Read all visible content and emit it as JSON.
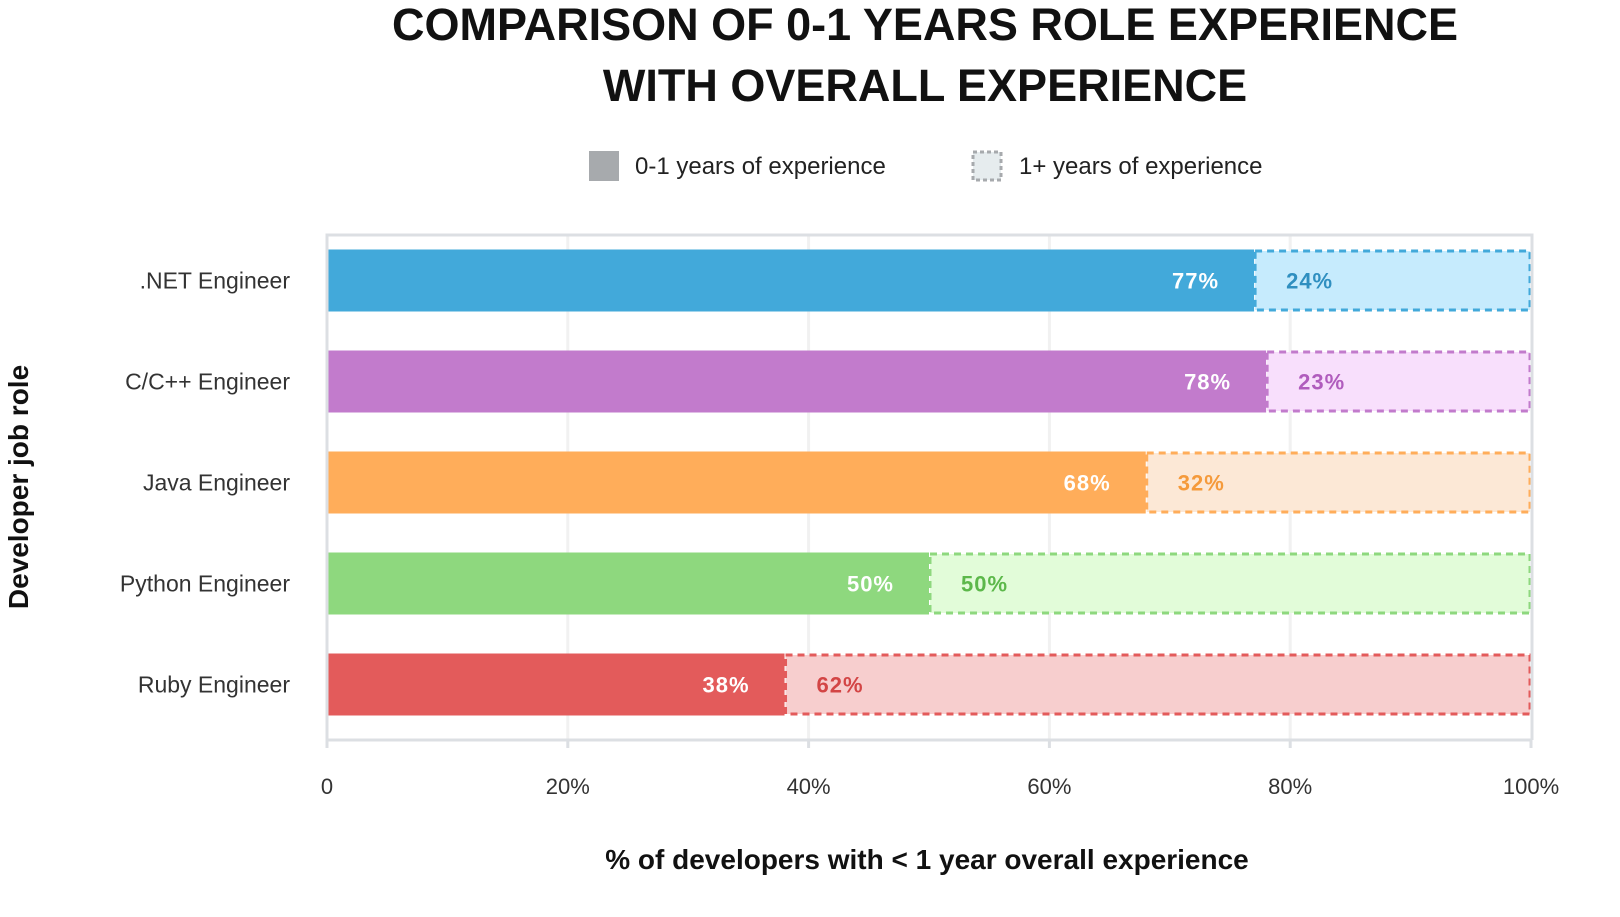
{
  "chart_data": {
    "type": "bar",
    "orientation": "horizontal",
    "stacked": true,
    "title_lines": [
      "COMPARISON OF 0-1 YEARS ROLE EXPERIENCE",
      "WITH OVERALL EXPERIENCE"
    ],
    "xlabel": "% of developers with < 1 year overall experience",
    "ylabel": "Developer job role",
    "xlim": [
      0,
      100
    ],
    "xticks": [
      "0",
      "20%",
      "40%",
      "60%",
      "80%",
      "100%"
    ],
    "grid": true,
    "legend_position": "top",
    "legend": [
      {
        "label": "0-1 years of experience",
        "color": "#a7aaad",
        "style": "solid"
      },
      {
        "label": "1+ years of experience",
        "color": "#e6ecee",
        "style": "dashed"
      }
    ],
    "categories": [
      ".NET Engineer",
      "C/C++ Engineer",
      "Java Engineer",
      "Python Engineer",
      "Ruby Engineer"
    ],
    "series": [
      {
        "name": "0-1 years of experience",
        "values": [
          77,
          78,
          68,
          50,
          38
        ],
        "labels": [
          "77%",
          "78%",
          "68%",
          "50%",
          "38%"
        ]
      },
      {
        "name": "1+ years of experience",
        "values": [
          24,
          23,
          32,
          50,
          62
        ],
        "labels": [
          "24%",
          "23%",
          "32%",
          "50%",
          "62%"
        ]
      }
    ],
    "colors": [
      {
        "solid": "#42a9da",
        "light": "#c6ebfd",
        "text": "#2f8fc0"
      },
      {
        "solid": "#c27bcc",
        "light": "#f8dffc",
        "text": "#b05cbd"
      },
      {
        "solid": "#ffad5a",
        "light": "#fce8d6",
        "text": "#f59a3b"
      },
      {
        "solid": "#8ed87e",
        "light": "#e2fcd9",
        "text": "#5cb84a"
      },
      {
        "solid": "#e35b5b",
        "light": "#f7cece",
        "text": "#d34545"
      }
    ]
  }
}
